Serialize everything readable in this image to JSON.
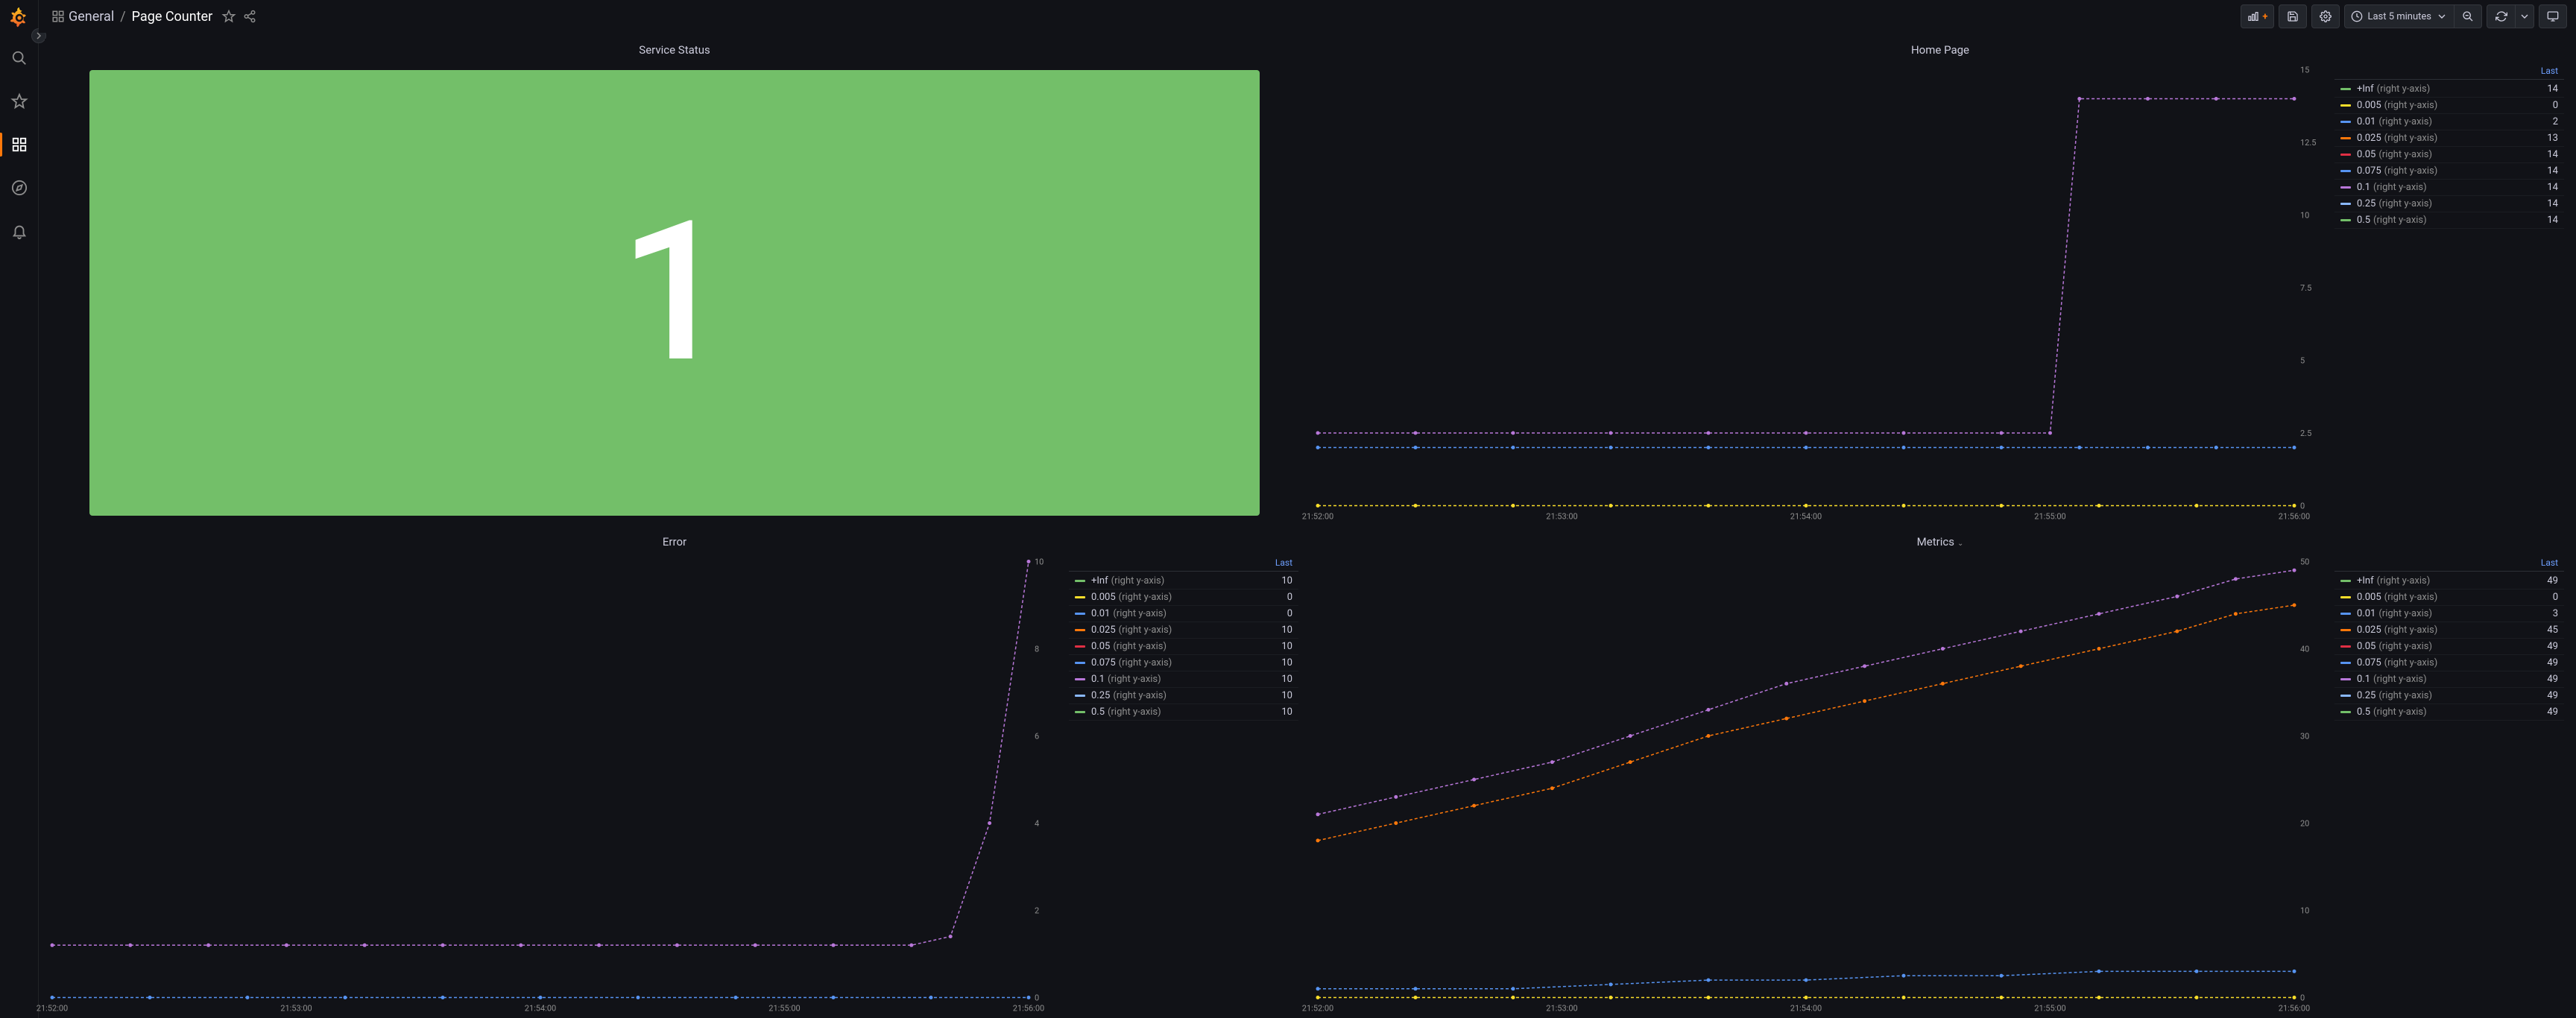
{
  "header": {
    "folder": "General",
    "title": "Page Counter",
    "time_range": "Last 5 minutes"
  },
  "sidebar": {
    "items": [
      "search",
      "starred",
      "dashboards",
      "explore",
      "alerting"
    ]
  },
  "panels": {
    "service_status": {
      "title": "Service Status",
      "type": "stat",
      "value": "1",
      "bg_color": "#73bf69"
    },
    "home_page": {
      "title": "Home Page",
      "type": "timeseries",
      "ylim": [
        0,
        15
      ],
      "ytick_step": 2.5,
      "yticks": [
        "0",
        "2.5",
        "5",
        "7.5",
        "10",
        "12.5",
        "15"
      ],
      "xticks": [
        "21:52:00",
        "21:53:00",
        "21:54:00",
        "21:55:00",
        "21:56:00"
      ],
      "legend_header": "Last",
      "colors": {
        "inf": "#73bf69",
        "0.005": "#fade2a",
        "0.01": "#5794f2",
        "0.025": "#ff780a",
        "0.05": "#e02f44",
        "0.075": "#5794f2",
        "0.1": "#b877d9",
        "0.25": "#8ab8ff",
        "0.5": "#73bf69"
      },
      "series": [
        {
          "name": "+Inf",
          "sub": "(right y-axis)",
          "last": "14",
          "color": "#73bf69"
        },
        {
          "name": "0.005",
          "sub": "(right y-axis)",
          "last": "0",
          "color": "#fade2a"
        },
        {
          "name": "0.01",
          "sub": "(right y-axis)",
          "last": "2",
          "color": "#5794f2"
        },
        {
          "name": "0.025",
          "sub": "(right y-axis)",
          "last": "13",
          "color": "#ff780a"
        },
        {
          "name": "0.05",
          "sub": "(right y-axis)",
          "last": "14",
          "color": "#e02f44"
        },
        {
          "name": "0.075",
          "sub": "(right y-axis)",
          "last": "14",
          "color": "#5794f2"
        },
        {
          "name": "0.1",
          "sub": "(right y-axis)",
          "last": "14",
          "color": "#b877d9"
        },
        {
          "name": "0.25",
          "sub": "(right y-axis)",
          "last": "14",
          "color": "#8ab8ff"
        },
        {
          "name": "0.5",
          "sub": "(right y-axis)",
          "last": "14",
          "color": "#73bf69"
        }
      ],
      "lines": [
        {
          "color": "#b877d9",
          "points": [
            [
              0,
              2.5
            ],
            [
              0.1,
              2.5
            ],
            [
              0.2,
              2.5
            ],
            [
              0.3,
              2.5
            ],
            [
              0.4,
              2.5
            ],
            [
              0.5,
              2.5
            ],
            [
              0.6,
              2.5
            ],
            [
              0.7,
              2.5
            ],
            [
              0.75,
              2.5
            ],
            [
              0.78,
              14
            ],
            [
              0.85,
              14
            ],
            [
              0.92,
              14
            ],
            [
              1.0,
              14
            ]
          ]
        },
        {
          "color": "#5794f2",
          "points": [
            [
              0,
              2.0
            ],
            [
              0.1,
              2.0
            ],
            [
              0.2,
              2.0
            ],
            [
              0.3,
              2.0
            ],
            [
              0.4,
              2.0
            ],
            [
              0.5,
              2.0
            ],
            [
              0.6,
              2.0
            ],
            [
              0.7,
              2.0
            ],
            [
              0.78,
              2.0
            ],
            [
              0.85,
              2.0
            ],
            [
              0.92,
              2.0
            ],
            [
              1.0,
              2.0
            ]
          ]
        },
        {
          "color": "#fade2a",
          "points": [
            [
              0,
              0
            ],
            [
              0.1,
              0
            ],
            [
              0.2,
              0
            ],
            [
              0.3,
              0
            ],
            [
              0.4,
              0
            ],
            [
              0.5,
              0
            ],
            [
              0.6,
              0
            ],
            [
              0.7,
              0
            ],
            [
              0.8,
              0
            ],
            [
              0.9,
              0
            ],
            [
              1.0,
              0
            ]
          ]
        }
      ]
    },
    "error": {
      "title": "Error",
      "type": "timeseries",
      "ylim": [
        0,
        10
      ],
      "ytick_step": 2,
      "yticks": [
        "0",
        "2",
        "4",
        "6",
        "8",
        "10"
      ],
      "xticks": [
        "21:52:00",
        "21:53:00",
        "21:54:00",
        "21:55:00",
        "21:56:00"
      ],
      "legend_header": "Last",
      "series": [
        {
          "name": "+Inf",
          "sub": "(right y-axis)",
          "last": "10",
          "color": "#73bf69"
        },
        {
          "name": "0.005",
          "sub": "(right y-axis)",
          "last": "0",
          "color": "#fade2a"
        },
        {
          "name": "0.01",
          "sub": "(right y-axis)",
          "last": "0",
          "color": "#5794f2"
        },
        {
          "name": "0.025",
          "sub": "(right y-axis)",
          "last": "10",
          "color": "#ff780a"
        },
        {
          "name": "0.05",
          "sub": "(right y-axis)",
          "last": "10",
          "color": "#e02f44"
        },
        {
          "name": "0.075",
          "sub": "(right y-axis)",
          "last": "10",
          "color": "#5794f2"
        },
        {
          "name": "0.1",
          "sub": "(right y-axis)",
          "last": "10",
          "color": "#b877d9"
        },
        {
          "name": "0.25",
          "sub": "(right y-axis)",
          "last": "10",
          "color": "#8ab8ff"
        },
        {
          "name": "0.5",
          "sub": "(right y-axis)",
          "last": "10",
          "color": "#73bf69"
        }
      ],
      "lines": [
        {
          "color": "#b877d9",
          "points": [
            [
              0,
              1.2
            ],
            [
              0.08,
              1.2
            ],
            [
              0.16,
              1.2
            ],
            [
              0.24,
              1.2
            ],
            [
              0.32,
              1.2
            ],
            [
              0.4,
              1.2
            ],
            [
              0.48,
              1.2
            ],
            [
              0.56,
              1.2
            ],
            [
              0.64,
              1.2
            ],
            [
              0.72,
              1.2
            ],
            [
              0.8,
              1.2
            ],
            [
              0.88,
              1.2
            ],
            [
              0.92,
              1.4
            ],
            [
              0.96,
              4
            ],
            [
              1.0,
              10
            ]
          ]
        },
        {
          "color": "#5794f2",
          "points": [
            [
              0,
              0
            ],
            [
              0.1,
              0
            ],
            [
              0.2,
              0
            ],
            [
              0.3,
              0
            ],
            [
              0.4,
              0
            ],
            [
              0.5,
              0
            ],
            [
              0.6,
              0
            ],
            [
              0.7,
              0
            ],
            [
              0.8,
              0
            ],
            [
              0.9,
              0
            ],
            [
              1.0,
              0
            ]
          ]
        }
      ]
    },
    "metrics": {
      "title": "Metrics",
      "type": "timeseries",
      "has_dropdown": true,
      "ylim": [
        0,
        50
      ],
      "ytick_step": 10,
      "yticks": [
        "0",
        "10",
        "20",
        "30",
        "40",
        "50"
      ],
      "xticks": [
        "21:52:00",
        "21:53:00",
        "21:54:00",
        "21:55:00",
        "21:56:00"
      ],
      "legend_header": "Last",
      "series": [
        {
          "name": "+Inf",
          "sub": "(right y-axis)",
          "last": "49",
          "color": "#73bf69"
        },
        {
          "name": "0.005",
          "sub": "(right y-axis)",
          "last": "0",
          "color": "#fade2a"
        },
        {
          "name": "0.01",
          "sub": "(right y-axis)",
          "last": "3",
          "color": "#5794f2"
        },
        {
          "name": "0.025",
          "sub": "(right y-axis)",
          "last": "45",
          "color": "#ff780a"
        },
        {
          "name": "0.05",
          "sub": "(right y-axis)",
          "last": "49",
          "color": "#e02f44"
        },
        {
          "name": "0.075",
          "sub": "(right y-axis)",
          "last": "49",
          "color": "#5794f2"
        },
        {
          "name": "0.1",
          "sub": "(right y-axis)",
          "last": "49",
          "color": "#b877d9"
        },
        {
          "name": "0.25",
          "sub": "(right y-axis)",
          "last": "49",
          "color": "#8ab8ff"
        },
        {
          "name": "0.5",
          "sub": "(right y-axis)",
          "last": "49",
          "color": "#73bf69"
        }
      ],
      "lines": [
        {
          "color": "#b877d9",
          "points": [
            [
              0,
              21
            ],
            [
              0.08,
              23
            ],
            [
              0.16,
              25
            ],
            [
              0.24,
              27
            ],
            [
              0.32,
              30
            ],
            [
              0.4,
              33
            ],
            [
              0.48,
              36
            ],
            [
              0.56,
              38
            ],
            [
              0.64,
              40
            ],
            [
              0.72,
              42
            ],
            [
              0.8,
              44
            ],
            [
              0.88,
              46
            ],
            [
              0.94,
              48
            ],
            [
              1.0,
              49
            ]
          ]
        },
        {
          "color": "#ff780a",
          "points": [
            [
              0,
              18
            ],
            [
              0.08,
              20
            ],
            [
              0.16,
              22
            ],
            [
              0.24,
              24
            ],
            [
              0.32,
              27
            ],
            [
              0.4,
              30
            ],
            [
              0.48,
              32
            ],
            [
              0.56,
              34
            ],
            [
              0.64,
              36
            ],
            [
              0.72,
              38
            ],
            [
              0.8,
              40
            ],
            [
              0.88,
              42
            ],
            [
              0.94,
              44
            ],
            [
              1.0,
              45
            ]
          ]
        },
        {
          "color": "#5794f2",
          "points": [
            [
              0,
              1
            ],
            [
              0.1,
              1
            ],
            [
              0.2,
              1
            ],
            [
              0.3,
              1.5
            ],
            [
              0.4,
              2
            ],
            [
              0.5,
              2
            ],
            [
              0.6,
              2.5
            ],
            [
              0.7,
              2.5
            ],
            [
              0.8,
              3
            ],
            [
              0.9,
              3
            ],
            [
              1.0,
              3
            ]
          ]
        },
        {
          "color": "#fade2a",
          "points": [
            [
              0,
              0
            ],
            [
              0.1,
              0
            ],
            [
              0.2,
              0
            ],
            [
              0.3,
              0
            ],
            [
              0.4,
              0
            ],
            [
              0.5,
              0
            ],
            [
              0.6,
              0
            ],
            [
              0.7,
              0
            ],
            [
              0.8,
              0
            ],
            [
              0.9,
              0
            ],
            [
              1.0,
              0
            ]
          ]
        }
      ]
    }
  }
}
